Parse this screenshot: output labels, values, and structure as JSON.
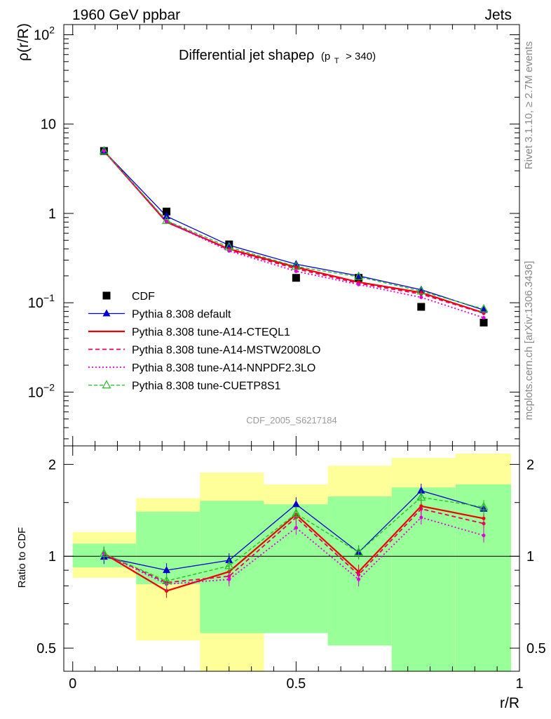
{
  "header": {
    "left": "1960 GeV ppbar",
    "right": "Jets"
  },
  "side_text": {
    "rivet": "Rivet 3.1.10, ≥ 2.7M events",
    "mcplots": "mcplots.cern.ch [arXiv:1306.3436]"
  },
  "watermark": "CDF_2005_S6217184",
  "chart_data": [
    {
      "type": "line",
      "title": "Differential jet shapeρ",
      "title_suffix": "(p",
      "title_sub": "T",
      "title_cut": "> 340)",
      "ylabel": "ρ(r/R)",
      "yscale": "log",
      "ylim": [
        0.0025,
        130
      ],
      "xlim": [
        -0.02,
        1.0
      ],
      "yticks": [
        {
          "value": 0.01,
          "base": "10",
          "exp": "−2"
        },
        {
          "value": 0.1,
          "base": "10",
          "exp": "−1"
        },
        {
          "value": 1,
          "base": "1",
          "exp": ""
        },
        {
          "value": 10,
          "base": "10",
          "exp": ""
        },
        {
          "value": 100,
          "base": "10",
          "exp": "2"
        }
      ],
      "x": [
        0.07,
        0.21,
        0.35,
        0.5,
        0.64,
        0.78,
        0.92
      ],
      "series": [
        {
          "name": "CDF",
          "color": "#000000",
          "style": "data",
          "marker": "square",
          "values": [
            5.0,
            1.05,
            0.45,
            0.19,
            0.19,
            0.09,
            0.06
          ]
        },
        {
          "name": "Pythia 8.308 default",
          "color": "#0000cc",
          "style": "solid",
          "marker": "triangle",
          "values": [
            5.0,
            0.93,
            0.44,
            0.27,
            0.2,
            0.14,
            0.083
          ]
        },
        {
          "name": "Pythia 8.308 tune-A14-CTEQL1",
          "color": "#ee0000",
          "style": "solid-thick",
          "marker": "none",
          "values": [
            5.0,
            0.8,
            0.4,
            0.25,
            0.17,
            0.13,
            0.077
          ]
        },
        {
          "name": "Pythia 8.308 tune-A14-MSTW2008LO",
          "color": "#e6005c",
          "style": "dashed",
          "marker": "none",
          "values": [
            5.0,
            0.82,
            0.39,
            0.24,
            0.165,
            0.125,
            0.076
          ]
        },
        {
          "name": "Pythia 8.308 tune-A14-NNPDF2.3LO",
          "color": "#dd00dd",
          "style": "dotted",
          "marker": "none",
          "values": [
            5.0,
            0.81,
            0.38,
            0.225,
            0.16,
            0.115,
            0.068
          ]
        },
        {
          "name": "Pythia 8.308 tune-CUETP8S1",
          "color": "#22bb22",
          "style": "dashed-green",
          "marker": "open-triangle",
          "values": [
            5.0,
            0.83,
            0.42,
            0.255,
            0.195,
            0.135,
            0.085
          ]
        }
      ]
    },
    {
      "type": "line",
      "ylabel": "Ratio to CDF",
      "xlabel": "r/R",
      "yscale": "log",
      "ylim": [
        0.42,
        2.3
      ],
      "xlim": [
        -0.02,
        1.0
      ],
      "xticks": [
        0,
        0.5,
        1
      ],
      "xtick_labels": [
        "0",
        "0.5",
        "1"
      ],
      "yticks": [
        0.5,
        1,
        2
      ],
      "ytick_labels": [
        "0.5",
        "1",
        "2"
      ],
      "reference_line": 1,
      "bins": [
        0.0,
        0.142,
        0.285,
        0.428,
        0.571,
        0.714,
        0.857,
        1.0
      ],
      "band_yellow": [
        [
          0.85,
          1.2
        ],
        [
          0.53,
          1.55
        ],
        [
          0.3,
          1.88
        ],
        [
          0.72,
          1.72
        ],
        [
          0.52,
          1.98
        ],
        [
          0.38,
          2.1
        ],
        [
          0.3,
          2.17
        ]
      ],
      "band_green": [
        [
          0.92,
          1.1
        ],
        [
          0.81,
          1.4
        ],
        [
          0.56,
          1.52
        ],
        [
          0.56,
          1.48
        ],
        [
          0.51,
          1.57
        ],
        [
          0.34,
          1.68
        ],
        [
          0.3,
          1.72
        ]
      ],
      "x": [
        0.07,
        0.21,
        0.35,
        0.5,
        0.64,
        0.78,
        0.92
      ],
      "series": [
        {
          "name": "Pythia 8.308 default",
          "color": "#0000cc",
          "style": "solid",
          "marker": "triangle",
          "values": [
            0.995,
            0.9,
            0.97,
            1.48,
            1.03,
            1.64,
            1.43
          ]
        },
        {
          "name": "Pythia 8.308 tune-A14-CTEQL1",
          "color": "#ee0000",
          "style": "solid-thick",
          "marker": "none",
          "values": [
            1.02,
            0.77,
            0.89,
            1.37,
            0.89,
            1.46,
            1.33
          ]
        },
        {
          "name": "Pythia 8.308 tune-A14-MSTW2008LO",
          "color": "#e6005c",
          "style": "dashed",
          "marker": "none",
          "values": [
            1.02,
            0.82,
            0.86,
            1.34,
            0.87,
            1.43,
            1.28
          ]
        },
        {
          "name": "Pythia 8.308 tune-A14-NNPDF2.3LO",
          "color": "#dd00dd",
          "style": "dotted",
          "marker": "none",
          "values": [
            1.02,
            0.81,
            0.84,
            1.24,
            0.84,
            1.34,
            1.17
          ]
        },
        {
          "name": "Pythia 8.308 tune-CUETP8S1",
          "color": "#22bb22",
          "style": "dashed-green",
          "marker": "open-triangle",
          "values": [
            1.02,
            0.83,
            0.93,
            1.38,
            1.03,
            1.56,
            1.45
          ]
        }
      ]
    }
  ]
}
